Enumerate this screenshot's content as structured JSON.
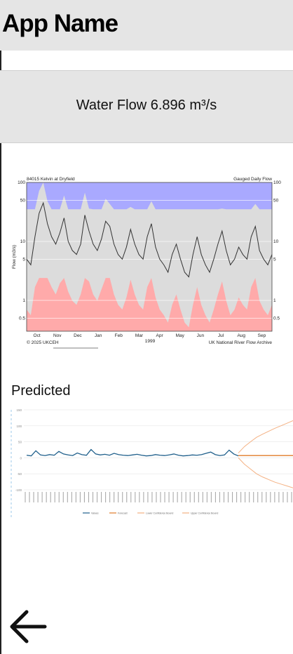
{
  "app": {
    "title": "App Name"
  },
  "flow_card": {
    "text": "Water Flow 6.896 m³/s"
  },
  "predicted": {
    "label": "Predicted"
  },
  "nav": {
    "back_icon": "arrow-left-icon"
  },
  "chart_data": [
    {
      "type": "area",
      "title": "84015 Kelvin at Dryfield",
      "subtitle": "Gauged Daily Flow",
      "ylabel": "Flow (m3/s)",
      "xlabel": "1999",
      "yscale": "log",
      "ylim": [
        0.3,
        100
      ],
      "y_ticks": [
        0.5,
        1,
        5,
        10,
        50,
        100
      ],
      "x_ticks": [
        "Oct",
        "Nov",
        "Dec",
        "Jan",
        "Feb",
        "Mar",
        "Apr",
        "May",
        "Jun",
        "Jul",
        "Aug",
        "Sep"
      ],
      "footer_left": "© 2025 UKCEH",
      "footer_right": "UK National River Flow Archive",
      "colors": {
        "max_band": "#a9a9ff",
        "range_band": "#dcdcdc",
        "min_band": "#ffaaaa",
        "flow_line": "#333333"
      },
      "series": [
        {
          "name": "Gauged Daily Flow",
          "values": [
            5,
            4,
            12,
            30,
            45,
            20,
            12,
            9,
            14,
            25,
            10,
            7,
            6,
            9,
            28,
            15,
            9,
            7,
            11,
            22,
            18,
            9,
            6,
            5,
            8,
            16,
            9,
            6,
            5,
            12,
            20,
            8,
            5,
            4,
            3,
            6,
            9,
            5,
            3,
            2.5,
            6,
            12,
            6,
            4,
            3,
            5,
            9,
            15,
            7,
            4,
            5,
            8,
            6,
            5,
            12,
            18,
            7,
            5,
            4,
            6
          ]
        }
      ]
    },
    {
      "type": "line",
      "y_ticks": [
        150,
        100,
        50,
        0,
        -50,
        -100
      ],
      "ylim": [
        -100,
        150
      ],
      "colors": {
        "actual": "#1f5f8b",
        "forecast": "#e07b2a",
        "lower": "#f4b183",
        "upper": "#f4b183"
      },
      "series": [
        {
          "name": "Values",
          "values": [
            8,
            6,
            22,
            9,
            7,
            10,
            8,
            20,
            12,
            9,
            7,
            15,
            10,
            8,
            26,
            12,
            9,
            11,
            8,
            14,
            10,
            8,
            7,
            9,
            11,
            8,
            6,
            7,
            10,
            8,
            7,
            9,
            12,
            8,
            6,
            7,
            9,
            8,
            10,
            14,
            18,
            10,
            7,
            9,
            24,
            12,
            6
          ]
        },
        {
          "name": "Forecast",
          "values": [
            7,
            7,
            7,
            7,
            7,
            7,
            7,
            7,
            7,
            7
          ]
        },
        {
          "name": "Lower Confidence Bound",
          "values": [
            0,
            -20,
            -35,
            -50,
            -60,
            -68,
            -76,
            -82,
            -88,
            -94
          ]
        },
        {
          "name": "Upper Confidence Bound",
          "values": [
            15,
            35,
            50,
            64,
            74,
            83,
            92,
            100,
            108,
            116
          ]
        }
      ]
    }
  ]
}
